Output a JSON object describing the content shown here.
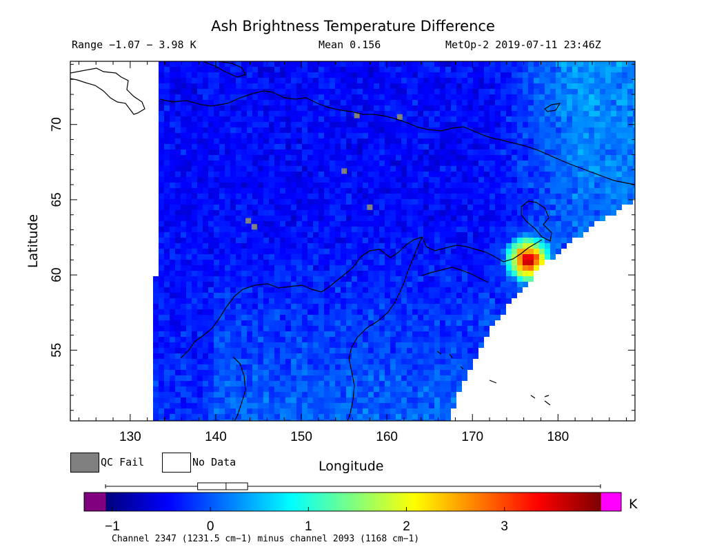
{
  "header": {
    "title": "Ash Brightness Temperature Difference",
    "range": "Range −1.07 − 3.98 K",
    "mean": "Mean 0.156",
    "satellite": "MetOp-2 2019-07-11 23:46Z"
  },
  "map": {
    "xlabel": "Longitude",
    "ylabel": "Latitude",
    "lon_range": [
      123,
      189
    ],
    "lat_range": [
      50.3,
      74.2
    ],
    "lon_ticks": [
      "130",
      "140",
      "150",
      "160",
      "170",
      "180"
    ],
    "lat_ticks": [
      "55",
      "60",
      "65",
      "70"
    ],
    "hotspot": {
      "lon": 176.5,
      "lat": 61.0,
      "value_max": 3.98
    }
  },
  "legend": {
    "qc_fail": "QC Fail",
    "no_data": "No Data",
    "qc_color": "#808080",
    "no_data_color": "#ffffff"
  },
  "colorbar": {
    "unit": "K",
    "min": -1.07,
    "max": 3.98,
    "tick_labels": [
      "−1",
      "0",
      "1",
      "2",
      "3"
    ],
    "tick_values": [
      -1,
      0,
      1,
      2,
      3
    ],
    "below_color": "#800080",
    "above_color": "#ff00ff",
    "box_whisker": {
      "min": -1.07,
      "q1": -0.13,
      "median": 0.16,
      "q3": 0.38,
      "max": 3.98
    }
  },
  "footnote": "Channel 2347 (1231.5 cm−1) minus channel 2093 (1168 cm−1)"
}
